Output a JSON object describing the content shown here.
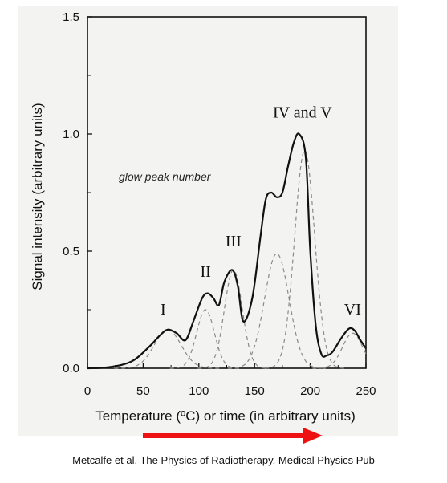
{
  "chart_data": {
    "type": "line",
    "xlabel": "Temperature (ºC) or time (in arbitrary units)",
    "ylabel": "Signal intensity (arbitrary units)",
    "xlim": [
      0,
      250
    ],
    "ylim": [
      0,
      1.5
    ],
    "xticks": [
      "0",
      "50",
      "100",
      "150",
      "200",
      "250"
    ],
    "yticks": [
      "0.0",
      "0.5",
      "1.0",
      "1.5"
    ],
    "grid": false,
    "annotation": "glow peak number",
    "total_curve": {
      "x": [
        0,
        20,
        40,
        55,
        65,
        72,
        80,
        88,
        95,
        103,
        108,
        113,
        118,
        123,
        130,
        135,
        140,
        148,
        155,
        160,
        165,
        170,
        175,
        180,
        185,
        190,
        196,
        200,
        205,
        210,
        215,
        220,
        228,
        235,
        240,
        245,
        250
      ],
      "y": [
        0,
        0.005,
        0.03,
        0.09,
        0.14,
        0.165,
        0.15,
        0.12,
        0.2,
        0.3,
        0.32,
        0.3,
        0.27,
        0.37,
        0.42,
        0.35,
        0.2,
        0.3,
        0.55,
        0.72,
        0.75,
        0.73,
        0.75,
        0.86,
        0.96,
        1.0,
        0.9,
        0.5,
        0.18,
        0.06,
        0.055,
        0.07,
        0.13,
        0.17,
        0.16,
        0.12,
        0.085
      ]
    },
    "peaks": [
      {
        "label": "I",
        "center": 72,
        "height": 0.165,
        "width": 12
      },
      {
        "label": "II",
        "center": 106,
        "height": 0.25,
        "width": 8
      },
      {
        "label": "III",
        "center": 131,
        "height": 0.42,
        "width": 8
      },
      {
        "label": "IV",
        "center": 170,
        "height": 0.49,
        "width": 11
      },
      {
        "label": "V",
        "center": 195,
        "height": 0.93,
        "width": 9
      },
      {
        "label": "VI",
        "center": 238,
        "height": 0.15,
        "width": 9
      }
    ],
    "peak_labels": [
      {
        "text": "I",
        "x": 68,
        "y": 0.23
      },
      {
        "text": "II",
        "x": 106,
        "y": 0.39
      },
      {
        "text": "III",
        "x": 131,
        "y": 0.52
      },
      {
        "text": "IV and V",
        "x": 193,
        "y": 1.07
      },
      {
        "text": "VI",
        "x": 238,
        "y": 0.23
      }
    ]
  },
  "arrow_color": "#ee1111",
  "credit": "Metcalfe et al, The Physics of Radiotherapy, Medical Physics Pub"
}
